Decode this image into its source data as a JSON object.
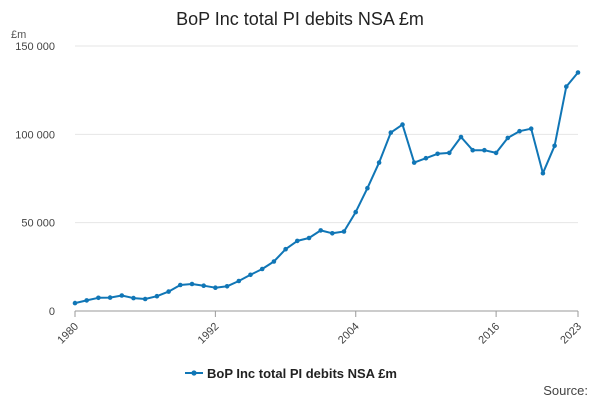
{
  "chart_data": {
    "type": "line",
    "title": "BoP Inc total PI debits NSA £m",
    "y_unit_label": "£m",
    "source_label": "Source:",
    "x_tick_labels": [
      "1980",
      "1992",
      "2004",
      "2016",
      "2023"
    ],
    "y_tick_labels": [
      "0",
      "50 000",
      "100 000",
      "150 000"
    ],
    "xlim": [
      1980,
      2023
    ],
    "ylim": [
      0,
      150000
    ],
    "grid": true,
    "legend_position": "bottom",
    "colors": {
      "series": "#1076b6",
      "grid": "#e6e6e6",
      "axis": "#9a9a9a",
      "text": "#222222"
    },
    "series": [
      {
        "name": "BoP Inc total PI debits NSA £m",
        "x": [
          1980,
          1981,
          1982,
          1983,
          1984,
          1985,
          1986,
          1987,
          1988,
          1989,
          1990,
          1991,
          1992,
          1993,
          1994,
          1995,
          1996,
          1997,
          1998,
          1999,
          2000,
          2001,
          2002,
          2003,
          2004,
          2005,
          2006,
          2007,
          2008,
          2009,
          2010,
          2011,
          2012,
          2013,
          2014,
          2015,
          2016,
          2017,
          2018,
          2019,
          2020,
          2021,
          2022,
          2023
        ],
        "values": [
          4500,
          6000,
          7500,
          7600,
          8800,
          7300,
          6800,
          8400,
          11000,
          14700,
          15300,
          14300,
          13200,
          14000,
          17000,
          20500,
          23800,
          28000,
          35000,
          39700,
          41300,
          45600,
          44000,
          45000,
          56000,
          69500,
          84000,
          101000,
          105500,
          84000,
          86500,
          89000,
          89500,
          98500,
          91000,
          91000,
          89500,
          98000,
          101800,
          103200,
          78000,
          93500,
          127000,
          135000
        ]
      }
    ]
  }
}
